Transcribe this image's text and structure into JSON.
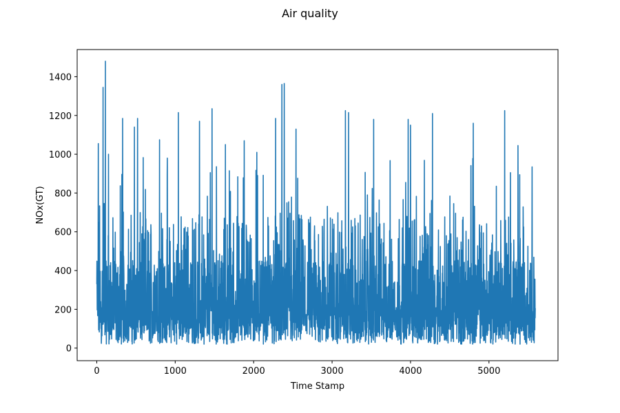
{
  "chart_data": {
    "type": "line",
    "title": "Air quality",
    "xlabel": "Time Stamp",
    "ylabel": "NOx(GT)",
    "xlim": [
      -250,
      5880
    ],
    "ylim": [
      -65,
      1540
    ],
    "xticks": [
      0,
      1000,
      2000,
      3000,
      4000,
      5000
    ],
    "yticks": [
      0,
      200,
      400,
      600,
      800,
      1000,
      1200,
      1400
    ],
    "grid": false,
    "legend": "none",
    "series": [
      {
        "color": "#1f77b4",
        "approx_peaks": [
          [
            0,
            330
          ],
          [
            20,
            1055
          ],
          [
            80,
            1345
          ],
          [
            110,
            1480
          ],
          [
            150,
            1000
          ],
          [
            330,
            1185
          ],
          [
            480,
            1140
          ],
          [
            520,
            1185
          ],
          [
            800,
            1075
          ],
          [
            1040,
            1215
          ],
          [
            1310,
            1170
          ],
          [
            1470,
            1235
          ],
          [
            1640,
            1050
          ],
          [
            1880,
            1070
          ],
          [
            2040,
            1010
          ],
          [
            2280,
            1185
          ],
          [
            2360,
            1360
          ],
          [
            2390,
            1365
          ],
          [
            2540,
            1130
          ],
          [
            3170,
            1225
          ],
          [
            3210,
            1215
          ],
          [
            3530,
            1180
          ],
          [
            3970,
            1180
          ],
          [
            4000,
            1150
          ],
          [
            4280,
            1210
          ],
          [
            4800,
            1160
          ],
          [
            5200,
            1225
          ],
          [
            5370,
            1045
          ],
          [
            5550,
            935
          ]
        ],
        "y_range_typical": [
          20,
          700
        ]
      }
    ]
  }
}
